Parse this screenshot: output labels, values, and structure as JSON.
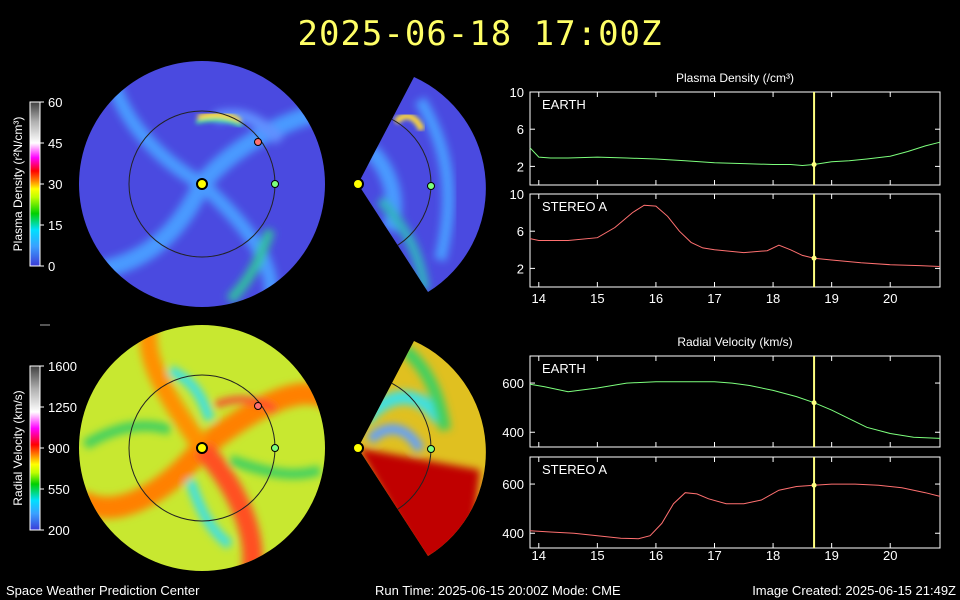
{
  "title": "2025-06-18 17:00Z",
  "footer": {
    "center": "Space Weather Prediction Center",
    "runtime": "Run Time: 2025-06-15 20:00Z  Mode: CME",
    "created": "Image Created: 2025-06-15 21:49Z"
  },
  "colorbars": [
    {
      "label": "Plasma Density (r²N/cm³)",
      "ticks": [
        "60",
        "45",
        "30",
        "15",
        "0"
      ]
    },
    {
      "label": "Radial Velocity (km/s)",
      "ticks": [
        "1600",
        "1250",
        "900",
        "550",
        "200"
      ]
    }
  ],
  "colors": {
    "earth": "#7dff7d",
    "stereo": "#ff7070",
    "marker": "#ffff80",
    "title": "#ffff66"
  },
  "chart_data": [
    {
      "type": "line",
      "title": "Plasma Density (/cm³)",
      "panels": [
        {
          "label": "EARTH",
          "ylim": [
            0,
            10
          ],
          "yticks": [
            2,
            6,
            10
          ],
          "series": [
            {
              "color": "#7dff7d",
              "x": [
                13.85,
                14.0,
                14.2,
                14.5,
                15,
                15.5,
                16,
                16.5,
                17,
                17.5,
                18,
                18.3,
                18.5,
                18.7,
                19,
                19.3,
                19.6,
                20,
                20.3,
                20.6,
                20.85
              ],
              "y": [
                4.0,
                3.0,
                2.9,
                2.9,
                3.0,
                2.9,
                2.8,
                2.6,
                2.4,
                2.3,
                2.2,
                2.2,
                2.1,
                2.2,
                2.5,
                2.6,
                2.8,
                3.1,
                3.6,
                4.2,
                4.6
              ]
            }
          ]
        },
        {
          "label": "STEREO A",
          "ylim": [
            0,
            10
          ],
          "yticks": [
            2,
            6,
            10
          ],
          "series": [
            {
              "color": "#ff7070",
              "x": [
                13.85,
                14.0,
                14.5,
                15,
                15.3,
                15.6,
                15.8,
                16.0,
                16.2,
                16.4,
                16.6,
                16.8,
                17,
                17.5,
                17.9,
                18.1,
                18.3,
                18.5,
                18.7,
                19,
                19.5,
                20,
                20.5,
                20.85
              ],
              "y": [
                5.2,
                5.0,
                5.0,
                5.3,
                6.4,
                8.0,
                8.8,
                8.7,
                7.6,
                6.0,
                4.8,
                4.2,
                4.0,
                3.7,
                3.9,
                4.5,
                4.0,
                3.4,
                3.1,
                2.9,
                2.6,
                2.4,
                2.3,
                2.2
              ]
            }
          ]
        }
      ],
      "xticks": [
        14,
        15,
        16,
        17,
        18,
        19,
        20
      ],
      "xlim": [
        13.85,
        20.85
      ],
      "marker_x": 18.7
    },
    {
      "type": "line",
      "title": "Radial Velocity (km/s)",
      "panels": [
        {
          "label": "EARTH",
          "ylim": [
            340,
            710
          ],
          "yticks": [
            400,
            600
          ],
          "series": [
            {
              "color": "#7dff7d",
              "x": [
                13.85,
                14.1,
                14.5,
                15,
                15.5,
                16,
                16.5,
                17,
                17.3,
                17.6,
                18,
                18.4,
                18.7,
                19,
                19.3,
                19.6,
                20,
                20.4,
                20.85
              ],
              "y": [
                595,
                585,
                565,
                580,
                600,
                605,
                605,
                605,
                600,
                590,
                570,
                545,
                520,
                490,
                455,
                420,
                395,
                380,
                375
              ]
            }
          ]
        },
        {
          "label": "STEREO A",
          "ylim": [
            340,
            710
          ],
          "yticks": [
            400,
            600
          ],
          "series": [
            {
              "color": "#ff7070",
              "x": [
                13.85,
                14.2,
                14.6,
                15,
                15.4,
                15.7,
                15.9,
                16.1,
                16.3,
                16.5,
                16.7,
                16.9,
                17.2,
                17.5,
                17.8,
                18.1,
                18.4,
                18.7,
                19,
                19.4,
                19.8,
                20.2,
                20.6,
                20.85
              ],
              "y": [
                410,
                405,
                400,
                390,
                380,
                378,
                390,
                440,
                520,
                565,
                560,
                540,
                520,
                520,
                535,
                575,
                590,
                595,
                600,
                600,
                595,
                585,
                565,
                550
              ]
            }
          ]
        }
      ],
      "xticks": [
        14,
        15,
        16,
        17,
        18,
        19,
        20
      ],
      "xlim": [
        13.85,
        20.85
      ],
      "marker_x": 18.7
    }
  ]
}
